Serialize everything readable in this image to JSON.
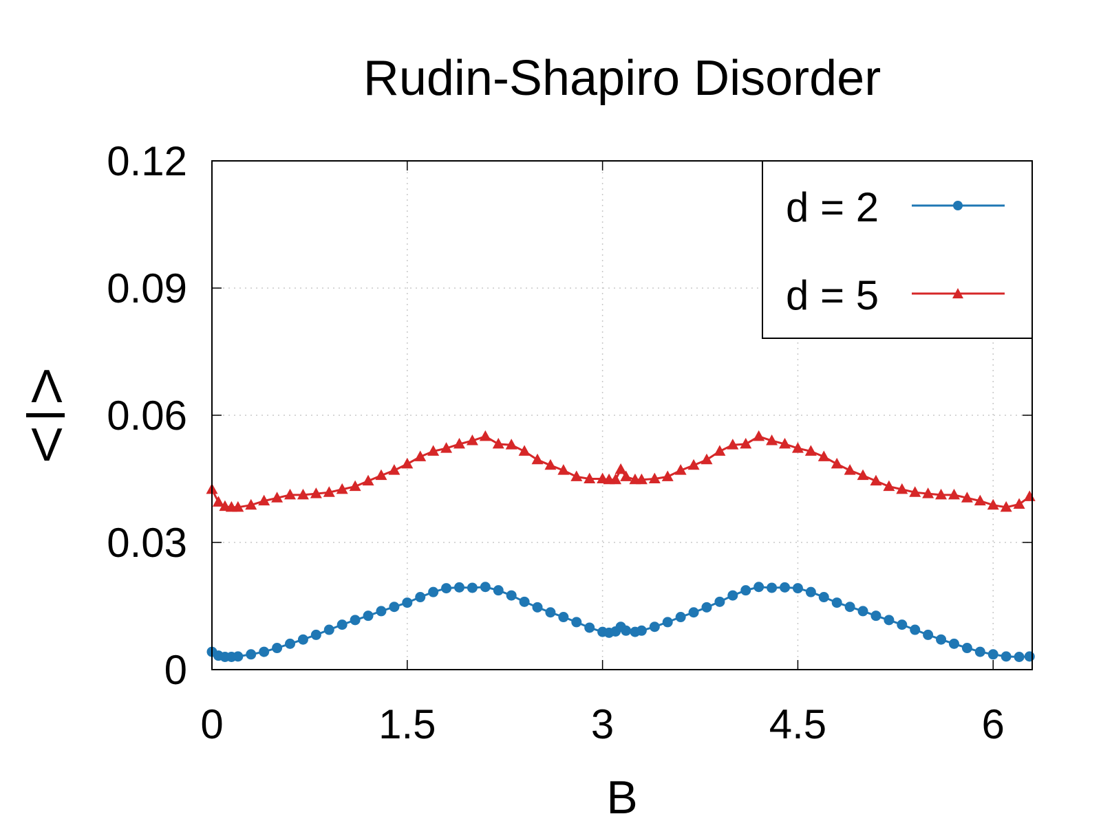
{
  "chart_data": {
    "type": "line",
    "title": "Rudin-Shapiro Disorder",
    "xlabel": "B",
    "ylabel_top": "Λ",
    "ylabel_bottom": "V",
    "xlim": [
      0,
      6.3
    ],
    "ylim": [
      0,
      0.12
    ],
    "xticks": [
      0,
      1.5,
      3,
      4.5,
      6
    ],
    "xtick_labels": [
      "0",
      "1.5",
      "3",
      "4.5",
      "6"
    ],
    "yticks": [
      0,
      0.03,
      0.06,
      0.09,
      0.12
    ],
    "ytick_labels": [
      "0",
      "0.03",
      "0.06",
      "0.09",
      "0.12"
    ],
    "grid": true,
    "legend_position": "top-right",
    "series": [
      {
        "name": "d = 2",
        "color": "#1f77b4",
        "marker": "circle",
        "x": [
          0,
          0.05,
          0.1,
          0.15,
          0.2,
          0.3,
          0.4,
          0.5,
          0.6,
          0.7,
          0.8,
          0.9,
          1.0,
          1.1,
          1.2,
          1.3,
          1.4,
          1.5,
          1.6,
          1.7,
          1.8,
          1.9,
          2.0,
          2.1,
          2.2,
          2.3,
          2.4,
          2.5,
          2.6,
          2.7,
          2.8,
          2.9,
          3.0,
          3.05,
          3.1,
          3.14,
          3.18,
          3.25,
          3.3,
          3.4,
          3.5,
          3.6,
          3.7,
          3.8,
          3.9,
          4.0,
          4.1,
          4.2,
          4.3,
          4.4,
          4.5,
          4.6,
          4.7,
          4.8,
          4.9,
          5.0,
          5.1,
          5.2,
          5.3,
          5.4,
          5.5,
          5.6,
          5.7,
          5.8,
          5.9,
          6.0,
          6.1,
          6.2,
          6.28
        ],
        "y": [
          0.0042,
          0.0033,
          0.003,
          0.003,
          0.0031,
          0.0036,
          0.0042,
          0.0051,
          0.0061,
          0.0071,
          0.0082,
          0.0094,
          0.0106,
          0.0117,
          0.0127,
          0.0138,
          0.0148,
          0.0158,
          0.0171,
          0.0183,
          0.0192,
          0.0194,
          0.0193,
          0.0195,
          0.0187,
          0.0175,
          0.016,
          0.0147,
          0.0135,
          0.0124,
          0.0112,
          0.0099,
          0.0089,
          0.0087,
          0.009,
          0.0101,
          0.0092,
          0.0089,
          0.0092,
          0.0101,
          0.0112,
          0.0124,
          0.0135,
          0.0147,
          0.016,
          0.0175,
          0.0187,
          0.0195,
          0.0193,
          0.0194,
          0.0192,
          0.0183,
          0.0171,
          0.0158,
          0.0148,
          0.0138,
          0.0127,
          0.0117,
          0.0106,
          0.0094,
          0.0082,
          0.0071,
          0.0061,
          0.0051,
          0.0042,
          0.0036,
          0.0031,
          0.003,
          0.0031
        ]
      },
      {
        "name": "d = 5",
        "color": "#d62728",
        "marker": "triangle",
        "x": [
          0,
          0.05,
          0.1,
          0.15,
          0.2,
          0.3,
          0.4,
          0.5,
          0.6,
          0.7,
          0.8,
          0.9,
          1.0,
          1.1,
          1.2,
          1.3,
          1.4,
          1.5,
          1.6,
          1.7,
          1.8,
          1.9,
          2.0,
          2.1,
          2.2,
          2.3,
          2.4,
          2.5,
          2.6,
          2.7,
          2.8,
          2.9,
          3.0,
          3.05,
          3.1,
          3.14,
          3.18,
          3.25,
          3.3,
          3.4,
          3.5,
          3.6,
          3.7,
          3.8,
          3.9,
          4.0,
          4.1,
          4.2,
          4.3,
          4.4,
          4.5,
          4.6,
          4.7,
          4.8,
          4.9,
          5.0,
          5.1,
          5.2,
          5.3,
          5.4,
          5.5,
          5.6,
          5.7,
          5.8,
          5.9,
          6.0,
          6.1,
          6.2,
          6.28
        ],
        "y": [
          0.0425,
          0.0395,
          0.0385,
          0.0383,
          0.0383,
          0.0388,
          0.0398,
          0.0405,
          0.0412,
          0.0412,
          0.0415,
          0.0418,
          0.0425,
          0.0432,
          0.0445,
          0.0458,
          0.047,
          0.0485,
          0.0502,
          0.0515,
          0.0522,
          0.0532,
          0.054,
          0.055,
          0.0532,
          0.053,
          0.0515,
          0.0495,
          0.0482,
          0.047,
          0.0455,
          0.045,
          0.045,
          0.0448,
          0.0448,
          0.0472,
          0.0455,
          0.0448,
          0.0448,
          0.045,
          0.0455,
          0.047,
          0.0482,
          0.0495,
          0.0515,
          0.053,
          0.0532,
          0.055,
          0.054,
          0.0532,
          0.0522,
          0.0515,
          0.0502,
          0.0485,
          0.047,
          0.0458,
          0.0445,
          0.0432,
          0.0425,
          0.0418,
          0.0415,
          0.0412,
          0.0412,
          0.0405,
          0.0398,
          0.0388,
          0.0383,
          0.039,
          0.0408
        ]
      }
    ]
  }
}
